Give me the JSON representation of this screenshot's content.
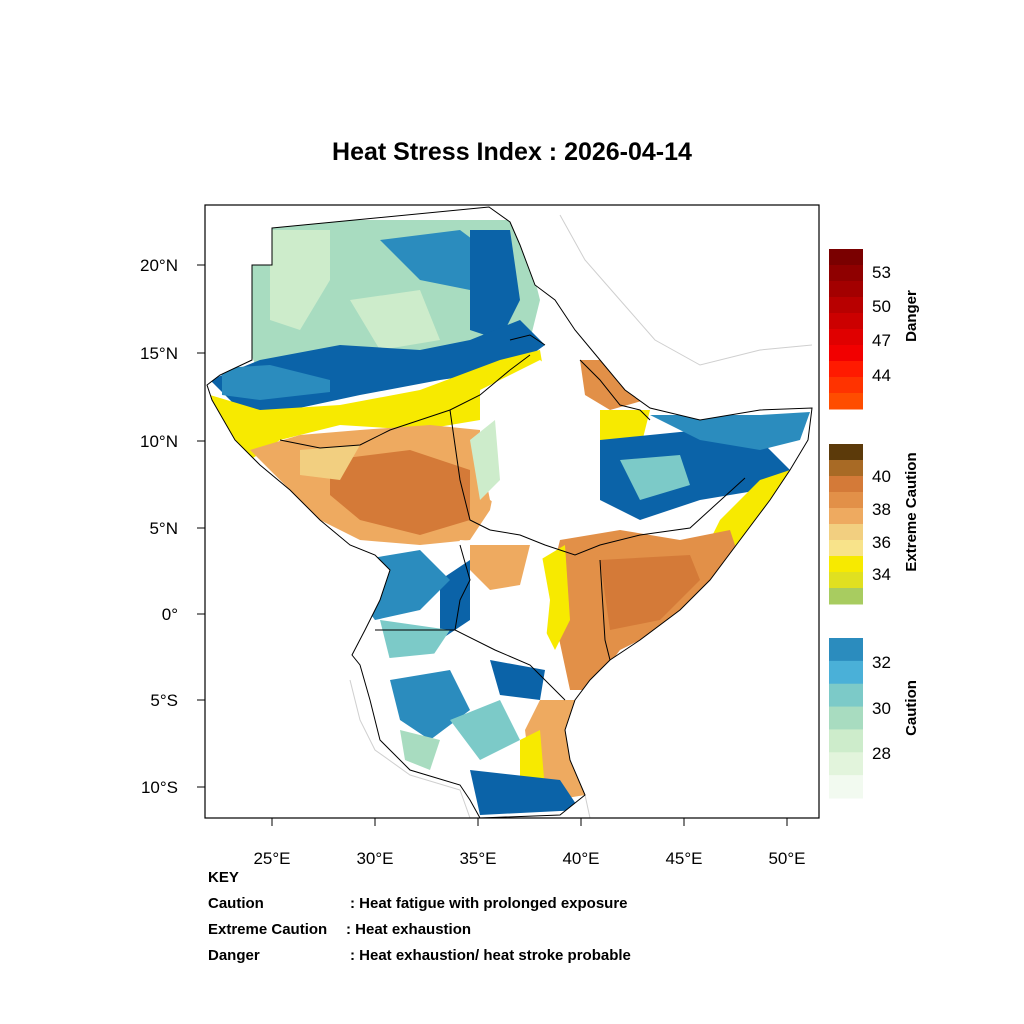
{
  "title": "Heat Stress Index : 2026-04-14",
  "axes": {
    "lat_ticks": [
      "20°N",
      "15°N",
      "10°N",
      "5°N",
      "0°",
      "5°S",
      "10°S"
    ],
    "lon_ticks": [
      "25°E",
      "30°E",
      "35°E",
      "40°E",
      "45°E",
      "50°E"
    ]
  },
  "legend": {
    "danger": {
      "name": "Danger",
      "ticks": [
        "53",
        "50",
        "47",
        "44"
      ],
      "colors": [
        "#7a0000",
        "#8f0000",
        "#a30000",
        "#b80000",
        "#cc0000",
        "#e00000",
        "#f20000",
        "#ff1a00",
        "#ff3300",
        "#ff4d00"
      ]
    },
    "extreme": {
      "name": "Extreme Caution",
      "ticks": [
        "40",
        "38",
        "36",
        "34"
      ],
      "colors": [
        "#5c3a0a",
        "#a86a25",
        "#d47a38",
        "#e29048",
        "#eeaa60",
        "#f2cf80",
        "#f8e38a",
        "#f7ea00",
        "#e0e020",
        "#a8cc60"
      ]
    },
    "caution": {
      "name": "Caution",
      "ticks": [
        "32",
        "30",
        "28"
      ],
      "colors": [
        "#2b8cbe",
        "#4ab0d8",
        "#7ccac8",
        "#a8dcc0",
        "#cdeccb",
        "#e2f4dc",
        "#f2faf0"
      ]
    }
  },
  "key": {
    "heading": "KEY",
    "rows": [
      {
        "term": "Caution",
        "desc": ": Heat fatigue with prolonged exposure"
      },
      {
        "term": "Extreme Caution",
        "desc": " : Heat exhaustion"
      },
      {
        "term": "Danger",
        "desc": ": Heat exhaustion/ heat stroke probable"
      }
    ]
  },
  "map_palette": {
    "white": "#ffffff",
    "mint": "#cdeccb",
    "teal": "#7ccac8",
    "blue": "#2b8cbe",
    "darkblue": "#0b63a8",
    "yellow": "#f7ea00",
    "lightorange": "#f2cf80",
    "orange": "#e29048",
    "darkorange": "#d47a38"
  }
}
